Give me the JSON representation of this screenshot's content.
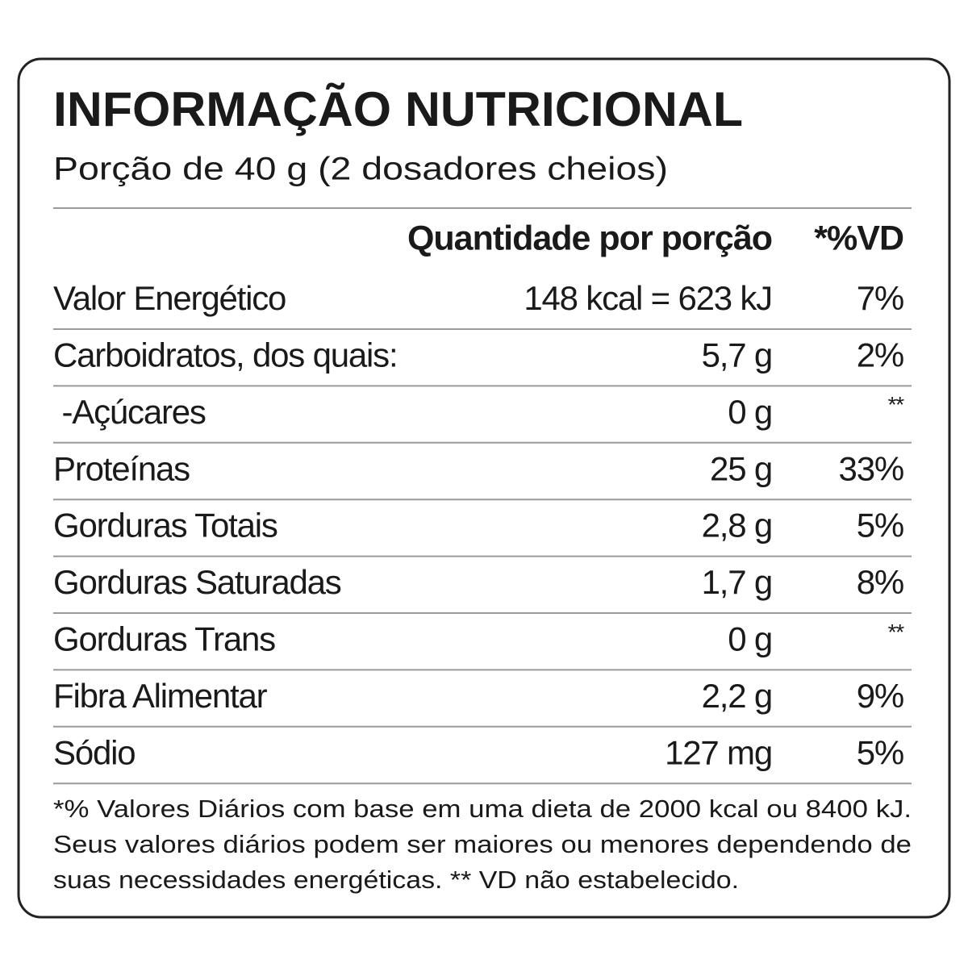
{
  "header": {
    "title": "INFORMAÇÃO NUTRICIONAL",
    "serving": "Porção de 40 g (2 dosadores cheios)"
  },
  "table": {
    "columns": [
      "Quantidade por porção",
      "*%VD"
    ],
    "rows": [
      [
        "Valor Energético",
        "148 kcal = 623 kJ",
        "7%"
      ],
      [
        "Carboidratos, dos quais:",
        "5,7 g",
        "2%"
      ],
      [
        " -Açúcares",
        "0 g",
        "**"
      ],
      [
        "Proteínas",
        "25 g",
        "33%"
      ],
      [
        "Gorduras Totais",
        "2,8 g",
        "5%"
      ],
      [
        "Gorduras Saturadas",
        "1,7 g",
        "8%"
      ],
      [
        "Gorduras Trans",
        "0 g",
        "**"
      ],
      [
        "Fibra Alimentar",
        "2,2 g",
        "9%"
      ],
      [
        "Sódio",
        "127 mg",
        "5%"
      ]
    ]
  },
  "footnote": [
    "*% Valores Diários com base em uma dieta de 2000 kcal ou 8400 kJ.",
    "Seus valores diários podem ser maiores ou menores dependendo de",
    "suas necessidades energéticas. ** VD não estabelecido."
  ]
}
